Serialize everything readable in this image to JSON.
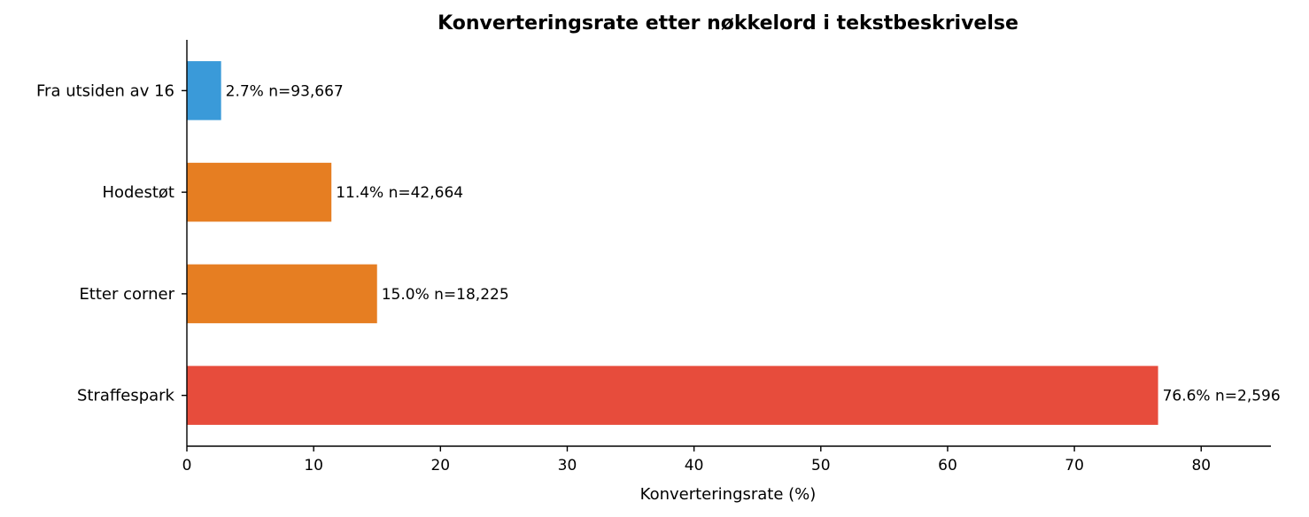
{
  "chart_data": {
    "type": "bar",
    "orientation": "horizontal",
    "title": "Konverteringsrate etter nøkkelord i tekstbeskrivelse",
    "xlabel": "Konverteringsrate (%)",
    "ylabel": "",
    "xlim": [
      0,
      85.5
    ],
    "xticks": [
      "0",
      "10",
      "20",
      "30",
      "40",
      "50",
      "60",
      "70",
      "80"
    ],
    "grid": false,
    "categories": [
      "Fra utsiden av 16",
      "Hodestøt",
      "Etter corner",
      "Straffespark"
    ],
    "values": [
      2.7,
      11.4,
      15.0,
      76.6
    ],
    "labels": [
      "2.7%  n=93,667",
      "11.4%  n=42,664",
      "15.0%  n=18,225",
      "76.6%  n=2,596"
    ],
    "colors": [
      "#3a9ad9",
      "#e67e22",
      "#e67e22",
      "#e74c3c"
    ]
  }
}
